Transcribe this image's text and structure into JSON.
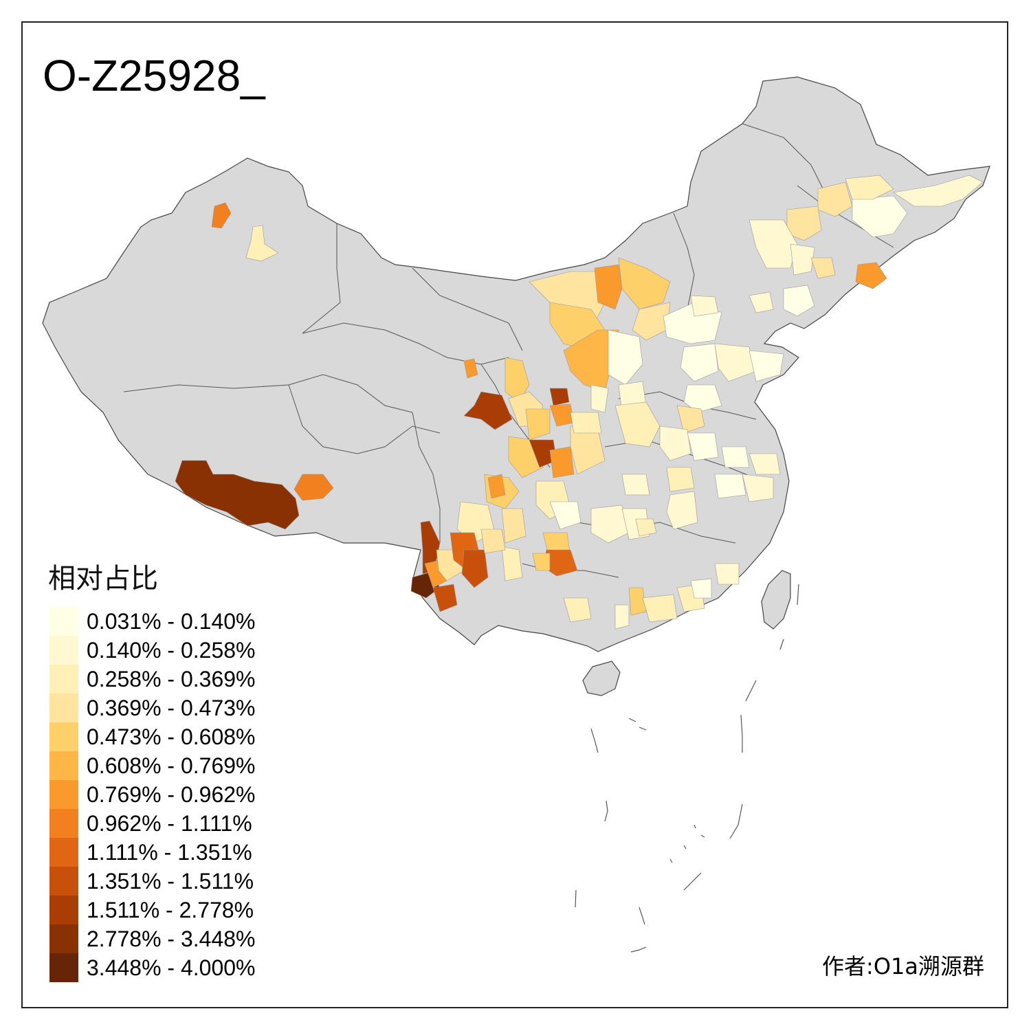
{
  "title": "O-Z25928_",
  "legend": {
    "title": "相对占比",
    "items": [
      {
        "label": "0.031% - 0.140%",
        "color": "#ffffe5"
      },
      {
        "label": "0.140% - 0.258%",
        "color": "#fff8d0"
      },
      {
        "label": "0.258% - 0.369%",
        "color": "#fff0b8"
      },
      {
        "label": "0.369% - 0.473%",
        "color": "#fee49e"
      },
      {
        "label": "0.473% - 0.608%",
        "color": "#fed06a"
      },
      {
        "label": "0.608% - 0.769%",
        "color": "#feb647"
      },
      {
        "label": "0.769% - 0.962%",
        "color": "#fb9a2c"
      },
      {
        "label": "0.962% - 1.111%",
        "color": "#f2801e"
      },
      {
        "label": "1.111% - 1.351%",
        "color": "#e06614"
      },
      {
        "label": "1.351% - 1.511%",
        "color": "#c9500a"
      },
      {
        "label": "1.511% - 2.778%",
        "color": "#a93d05"
      },
      {
        "label": "2.778% - 3.448%",
        "color": "#8a3104"
      },
      {
        "label": "3.448% - 4.000%",
        "color": "#662506"
      }
    ]
  },
  "author": "作者:O1a溯源群",
  "colors": {
    "land": "#d9d9d9",
    "border": "#444444",
    "frame": "#222222",
    "no_data": "#d9d9d9"
  }
}
